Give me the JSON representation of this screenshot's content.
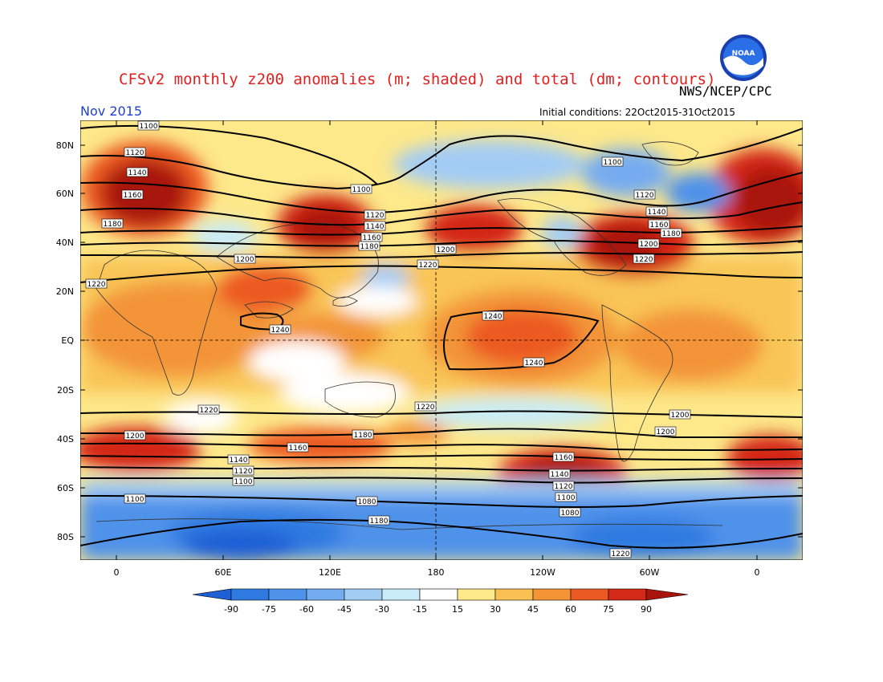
{
  "header": {
    "title": "CFSv2 monthly z200 anomalies (m; shaded) and total (dm; contours)",
    "agency": "NWS/NCEP/CPC",
    "month": "Nov 2015",
    "initial_conditions": "Initial conditions: 22Oct2015-31Oct2015",
    "logo_text": "NOAA"
  },
  "axes": {
    "lat_ticks": [
      "80N",
      "60N",
      "40N",
      "20N",
      "EQ",
      "20S",
      "40S",
      "60S",
      "80S"
    ],
    "lon_ticks": [
      "0",
      "60E",
      "120E",
      "180",
      "120W",
      "60W",
      "0"
    ]
  },
  "colorbar": {
    "labels": [
      "-90",
      "-75",
      "-60",
      "-45",
      "-30",
      "-15",
      "15",
      "30",
      "45",
      "60",
      "75",
      "90"
    ],
    "colors": [
      "#1e5fd6",
      "#2f7ae0",
      "#4f92ea",
      "#74acf0",
      "#a3ccf5",
      "#c9ecf8",
      "#ffffff",
      "#fde88a",
      "#f8c152",
      "#f39437",
      "#ec5a23",
      "#d42818",
      "#a8140c"
    ]
  },
  "contour_labels": [
    "1100",
    "1120",
    "1140",
    "1160",
    "1180",
    "1200",
    "1200",
    "1220",
    "1100",
    "1120",
    "1140",
    "1160",
    "1180",
    "1200",
    "1220",
    "1240",
    "1240",
    "1100",
    "1120",
    "1140",
    "1160",
    "1180",
    "1200",
    "1220",
    "1240",
    "1220",
    "1220",
    "1200",
    "1200",
    "1180",
    "1160",
    "1140",
    "1120",
    "1100",
    "1100",
    "1080",
    "1180",
    "1160",
    "1140",
    "1120",
    "1100",
    "1080",
    "1220",
    "1200"
  ]
}
